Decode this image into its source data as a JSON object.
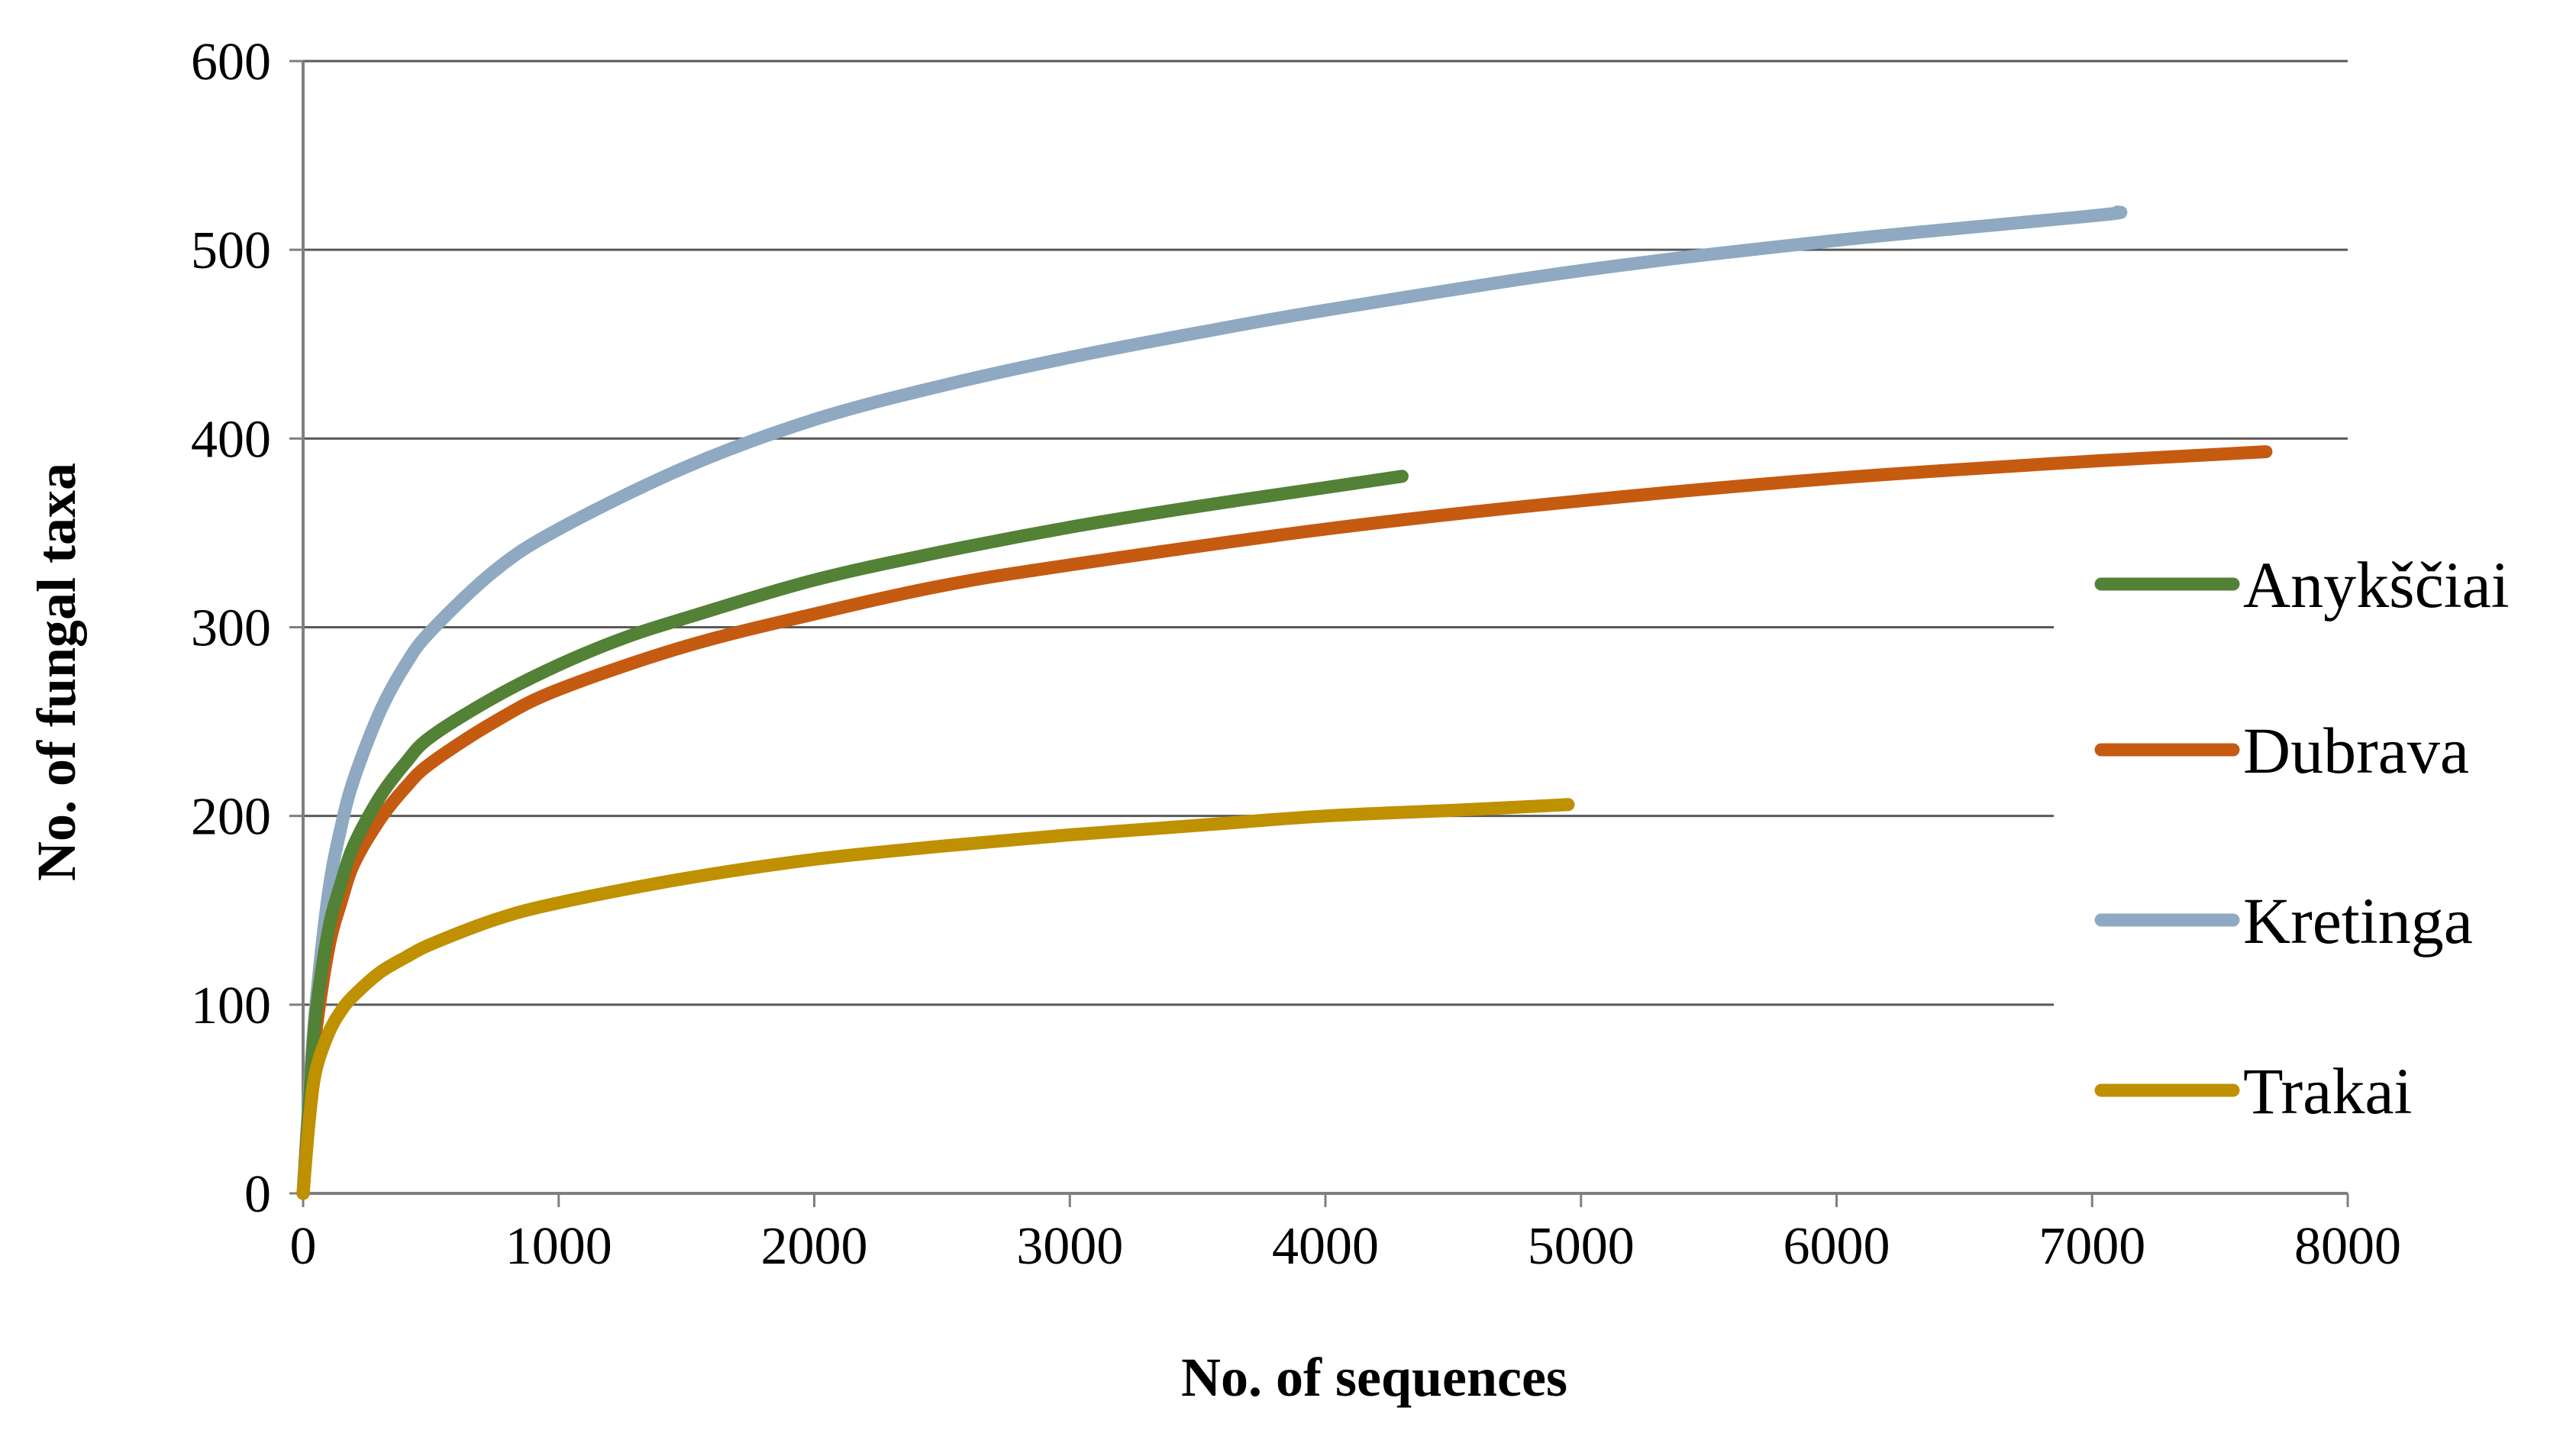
{
  "chart_data": {
    "type": "line",
    "title": "",
    "xlabel": "No. of sequences",
    "ylabel": "No. of fungal taxa",
    "xlim": [
      0,
      8000
    ],
    "ylim": [
      0,
      600
    ],
    "xticks": [
      "0",
      "1000",
      "2000",
      "3000",
      "4000",
      "5000",
      "6000",
      "7000",
      "8000"
    ],
    "yticks": [
      "0",
      "100",
      "200",
      "300",
      "400",
      "500",
      "600"
    ],
    "grid": "horizontal",
    "legend_position": "right",
    "series": [
      {
        "name": "Anykščiai",
        "color": "#538135",
        "x": [
          0,
          25,
          50,
          100,
          150,
          200,
          300,
          400,
          500,
          750,
          1000,
          1250,
          1500,
          2000,
          2500,
          3000,
          3500,
          4000,
          4300
        ],
        "y": [
          0,
          50,
          95,
          140,
          165,
          185,
          210,
          228,
          242,
          263,
          280,
          294,
          305,
          325,
          340,
          353,
          364,
          374,
          380
        ]
      },
      {
        "name": "Dubrava",
        "color": "#c55a11",
        "x": [
          0,
          25,
          50,
          100,
          150,
          200,
          300,
          400,
          500,
          750,
          1000,
          1500,
          2000,
          2500,
          3000,
          4000,
          5000,
          6000,
          7000,
          7680
        ],
        "y": [
          0,
          45,
          85,
          130,
          155,
          175,
          198,
          215,
          228,
          250,
          267,
          290,
          307,
          322,
          333,
          352,
          367,
          379,
          388,
          393
        ]
      },
      {
        "name": "Kretinga",
        "color": "#8ea9c1",
        "x": [
          0,
          25,
          50,
          100,
          150,
          200,
          300,
          400,
          500,
          750,
          1000,
          1500,
          2000,
          2500,
          3000,
          3500,
          4000,
          5000,
          6000,
          7000,
          7100
        ],
        "y": [
          0,
          55,
          100,
          160,
          195,
          220,
          255,
          280,
          298,
          330,
          352,
          385,
          410,
          428,
          443,
          456,
          468,
          489,
          505,
          518,
          520
        ]
      },
      {
        "name": "Trakai",
        "color": "#bf9000",
        "x": [
          0,
          25,
          50,
          100,
          150,
          200,
          300,
          400,
          500,
          750,
          1000,
          1500,
          2000,
          2500,
          3000,
          3500,
          4000,
          4500,
          4950
        ],
        "y": [
          0,
          40,
          65,
          85,
          97,
          105,
          117,
          125,
          132,
          145,
          154,
          167,
          177,
          184,
          190,
          195,
          200,
          203,
          206
        ]
      }
    ]
  }
}
